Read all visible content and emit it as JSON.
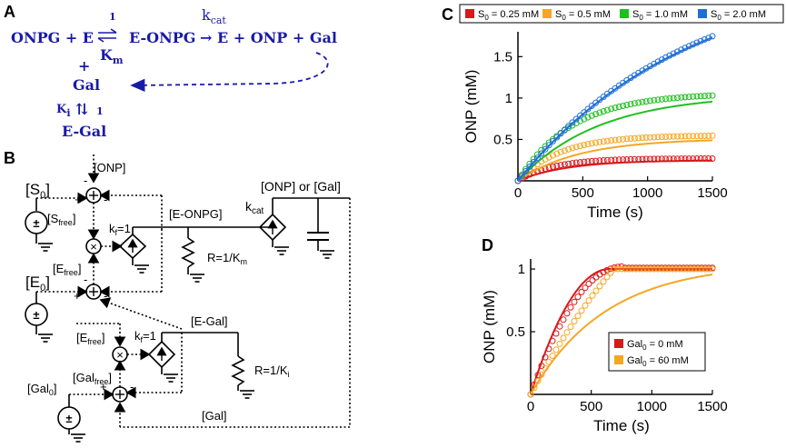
{
  "panels": {
    "a": "A",
    "b": "B",
    "c": "C",
    "d": "D"
  },
  "reaction": {
    "substrates": "ONPG + E",
    "k1": "1",
    "km": "K",
    "km_sub": "m",
    "complex": "E-ONPG",
    "kcat": "k",
    "kcat_sub": "cat",
    "products": "→ E + ONP + Gal",
    "plus": "+",
    "gal": "Gal",
    "ki": "K",
    "ki_sub": "i",
    "ki_arrows": "⇅",
    "k1b": "1",
    "egal": "E-Gal"
  },
  "circuit": {
    "s0": "[S",
    "s0_sub": "0",
    "close": "]",
    "onp_in": "[ONP]",
    "sfree": "[S",
    "sfree_sub": "free",
    "sfree_close": "]",
    "e0": "[E",
    "e0_sub": "0",
    "e0_close": "]",
    "efree": "[E",
    "efree_sub": "free",
    "efree_close": "]",
    "efree2": "[E",
    "efree2_sub": "free",
    "efree2_close": "]",
    "kf": "k",
    "kf_sub": "f",
    "kf_val": "=1",
    "kf2": "k",
    "kf2_sub": "f",
    "kf2_val": "=1",
    "eonpg": "[E-ONPG]",
    "onp_or_gal": "[ONP] or [Gal]",
    "kcat": "k",
    "kcat_sub": "cat",
    "r_km": "R=1/K",
    "r_km_sub": "m",
    "egal": "[E-Gal]",
    "r_ki": "R=1/K",
    "r_ki_sub": "i",
    "gal0": "[Gal",
    "gal0_sub": "0",
    "gal0_close": "]",
    "galfree": "[Gal",
    "galfree_sub": "free",
    "galfree_close": "]",
    "gal_fb": "[Gal]",
    "pm": "±",
    "plus": "+",
    "minus": "-",
    "times": "×"
  },
  "colors": {
    "blue_text": "#1a1aa8",
    "red": "#d7191c",
    "orange": "#f5a623",
    "green": "#1fbf1f",
    "blue": "#1f6fd6"
  },
  "chart_data": [
    {
      "panel": "C",
      "type": "scatter",
      "xlabel": "Time   (s)",
      "ylabel": "ONP   (mM)",
      "xlim": [
        0,
        1500
      ],
      "ylim": [
        0,
        1.8
      ],
      "xticks": [
        0,
        500,
        1000,
        1500
      ],
      "yticks": [
        0.5,
        1,
        1.5
      ],
      "legend_position": "top",
      "series": [
        {
          "name": "S",
          "sub": "0",
          "suffix": " = 0.25 mM",
          "color": "#d7191c",
          "data_amp": 0.27,
          "data_tau": 270,
          "fit_amp": 0.25,
          "fit_tau": 380
        },
        {
          "name": "S",
          "sub": "0",
          "suffix": " = 0.5 mM",
          "color": "#f5a623",
          "data_amp": 0.55,
          "data_tau": 330,
          "fit_amp": 0.51,
          "fit_tau": 470
        },
        {
          "name": "S",
          "sub": "0",
          "suffix": " = 1.0 mM",
          "color": "#1fbf1f",
          "data_amp": 1.06,
          "data_tau": 420,
          "fit_amp": 1.05,
          "fit_tau": 620
        },
        {
          "name": "S",
          "sub": "0",
          "suffix": " = 2.0 mM",
          "color": "#1f6fd6",
          "data_amp": 2.55,
          "data_tau": 1300,
          "fit_amp": 2.55,
          "fit_tau": 1320
        }
      ]
    },
    {
      "panel": "D",
      "type": "scatter",
      "xlabel": "Time   (s)",
      "ylabel": "ONP   (mM)",
      "xlim": [
        0,
        1500
      ],
      "ylim": [
        0,
        1.08
      ],
      "xticks": [
        0,
        500,
        1000,
        1500
      ],
      "yticks": [
        0.5,
        1
      ],
      "legend_position": "inside-right",
      "series": [
        {
          "name": "Gal",
          "sub": "0",
          "suffix": " = 0 mM",
          "color": "#d7191c",
          "fit_cap_time": 650,
          "fit_v0": 0.00235,
          "data_cap_time": 760,
          "data_v0": 0.0022
        },
        {
          "name": "Gal",
          "sub": "0",
          "suffix": " = 60 mM",
          "color": "#f5a623",
          "fit_tau": 620,
          "fit_amp": 1.05,
          "data_tau": 430,
          "data_amp": 1.0
        }
      ]
    }
  ]
}
